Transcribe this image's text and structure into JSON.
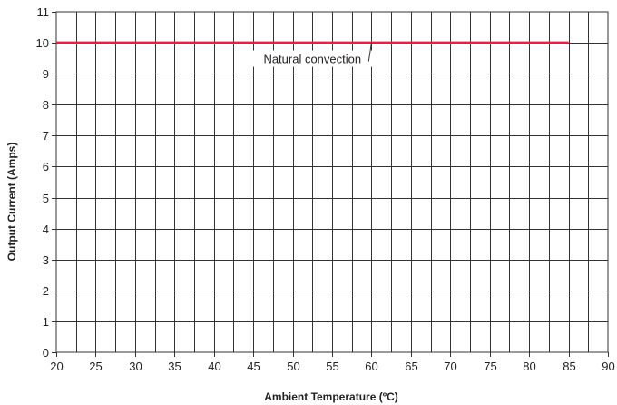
{
  "chart_data": {
    "type": "line",
    "xlabel": "Ambient Temperature (ºC)",
    "ylabel": "Output Current (Amps)",
    "xlim": [
      20,
      90
    ],
    "ylim": [
      0,
      11
    ],
    "x_ticks": [
      20,
      25,
      30,
      35,
      40,
      45,
      50,
      55,
      60,
      65,
      70,
      75,
      80,
      85,
      90
    ],
    "y_ticks": [
      0,
      1,
      2,
      3,
      4,
      5,
      6,
      7,
      8,
      9,
      10,
      11
    ],
    "x_grid_step": 2.5,
    "grid": true,
    "series": [
      {
        "name": "Natural convection",
        "color": "#d0284a",
        "x": [
          20,
          85
        ],
        "y": [
          10,
          10
        ]
      }
    ],
    "annotation": {
      "text": "Natural convection",
      "x": 52.5,
      "y": 9.4,
      "pointer_to": {
        "x": 60,
        "y": 10
      }
    }
  }
}
